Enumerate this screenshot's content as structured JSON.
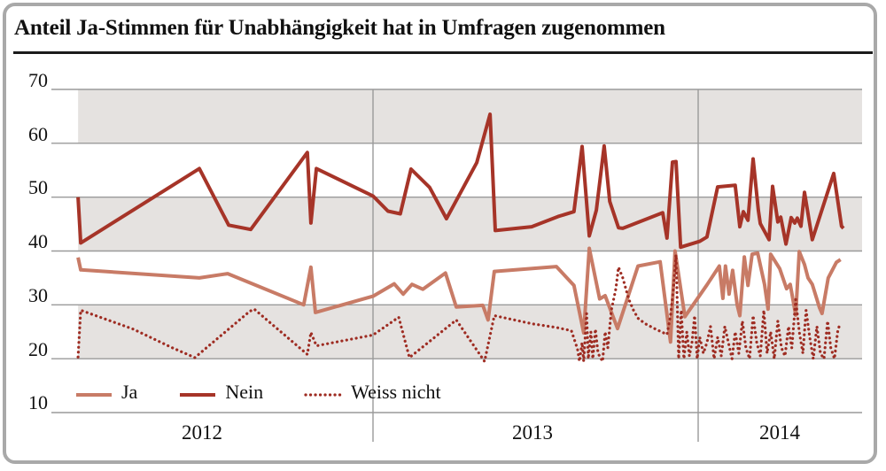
{
  "title": "Anteil Ja-Stimmen für Unabhängigkeit hat in Umfragen zugenommen",
  "chart_data": {
    "type": "line",
    "title": "Anteil Ja-Stimmen für Unabhängigkeit hat in Umfragen zugenommen",
    "xlabel": "",
    "ylabel": "",
    "ylim": [
      10,
      70
    ],
    "xlim_years": [
      2012.02,
      2014.5
    ],
    "y_ticks": [
      70,
      60,
      50,
      40,
      30,
      20,
      10
    ],
    "x_year_labels": [
      "2012",
      "2013",
      "2014"
    ],
    "year_separators": [
      2013,
      2014
    ],
    "bands": [
      [
        60,
        70
      ],
      [
        40,
        50
      ],
      [
        20,
        30
      ]
    ],
    "grid": "horizontal gridlines at every 10, vertical year separators, alternating gray bands",
    "legend_position": "bottom-left inside plot area",
    "colors": {
      "ja": "#c87b66",
      "nein": "#a63428",
      "weiss_nicht": "#9e2c22",
      "band": "#e5e2e0",
      "grid": "#9a9a9a",
      "title_rule": "#1b1b1b",
      "border": "#a9a9a9"
    },
    "series": [
      {
        "name": "Ja",
        "style": "solid",
        "color": "#c87b66",
        "points": [
          [
            2012.093,
            38.8
          ],
          [
            2012.101,
            36.5
          ],
          [
            2012.466,
            35.0
          ],
          [
            2012.553,
            35.8
          ],
          [
            2012.787,
            30.0
          ],
          [
            2012.809,
            37.0
          ],
          [
            2012.823,
            28.6
          ],
          [
            2013.0,
            31.6
          ],
          [
            2013.065,
            33.9
          ],
          [
            2013.093,
            32.0
          ],
          [
            2013.12,
            33.8
          ],
          [
            2013.153,
            32.9
          ],
          [
            2013.223,
            35.9
          ],
          [
            2013.256,
            29.6
          ],
          [
            2013.338,
            29.9
          ],
          [
            2013.354,
            27.2
          ],
          [
            2013.373,
            36.2
          ],
          [
            2013.564,
            37.1
          ],
          [
            2013.618,
            33.6
          ],
          [
            2013.648,
            24.8
          ],
          [
            2013.665,
            40.5
          ],
          [
            2013.697,
            31.1
          ],
          [
            2013.714,
            31.7
          ],
          [
            2013.752,
            25.6
          ],
          [
            2013.815,
            37.2
          ],
          [
            2013.883,
            38.0
          ],
          [
            2013.915,
            23.1
          ],
          [
            2013.929,
            40.0
          ],
          [
            2013.959,
            27.8
          ],
          [
            2014.027,
            33.7
          ],
          [
            2014.065,
            37.2
          ],
          [
            2014.076,
            31.2
          ],
          [
            2014.084,
            37.2
          ],
          [
            2014.095,
            32.0
          ],
          [
            2014.106,
            36.4
          ],
          [
            2014.12,
            30.0
          ],
          [
            2014.128,
            28.0
          ],
          [
            2014.142,
            38.9
          ],
          [
            2014.153,
            33.6
          ],
          [
            2014.166,
            39.4
          ],
          [
            2014.183,
            39.6
          ],
          [
            2014.204,
            33.8
          ],
          [
            2014.215,
            29.2
          ],
          [
            2014.223,
            39.4
          ],
          [
            2014.251,
            36.7
          ],
          [
            2014.272,
            33.0
          ],
          [
            2014.283,
            33.8
          ],
          [
            2014.3,
            28.1
          ],
          [
            2014.311,
            39.9
          ],
          [
            2014.327,
            37.5
          ],
          [
            2014.338,
            35.0
          ],
          [
            2014.351,
            33.8
          ],
          [
            2014.373,
            29.5
          ],
          [
            2014.381,
            28.4
          ],
          [
            2014.4,
            35.0
          ],
          [
            2014.425,
            37.9
          ],
          [
            2014.438,
            38.4
          ]
        ]
      },
      {
        "name": "Nein",
        "style": "solid",
        "color": "#a63428",
        "points": [
          [
            2012.093,
            50.0
          ],
          [
            2012.101,
            41.5
          ],
          [
            2012.466,
            55.3
          ],
          [
            2012.556,
            44.8
          ],
          [
            2012.624,
            44.0
          ],
          [
            2012.798,
            58.3
          ],
          [
            2012.809,
            45.2
          ],
          [
            2012.826,
            55.3
          ],
          [
            2013.0,
            50.2
          ],
          [
            2013.046,
            47.4
          ],
          [
            2013.084,
            46.9
          ],
          [
            2013.117,
            55.2
          ],
          [
            2013.174,
            51.8
          ],
          [
            2013.226,
            46.0
          ],
          [
            2013.319,
            56.4
          ],
          [
            2013.36,
            65.4
          ],
          [
            2013.376,
            43.8
          ],
          [
            2013.488,
            44.5
          ],
          [
            2013.569,
            46.4
          ],
          [
            2013.618,
            47.3
          ],
          [
            2013.643,
            59.4
          ],
          [
            2013.665,
            42.8
          ],
          [
            2013.687,
            47.6
          ],
          [
            2013.711,
            59.5
          ],
          [
            2013.728,
            49.2
          ],
          [
            2013.755,
            44.3
          ],
          [
            2013.768,
            44.2
          ],
          [
            2013.891,
            47.1
          ],
          [
            2013.904,
            42.4
          ],
          [
            2013.921,
            56.5
          ],
          [
            2013.932,
            56.6
          ],
          [
            2013.946,
            40.7
          ],
          [
            2014.005,
            41.8
          ],
          [
            2014.027,
            42.6
          ],
          [
            2014.06,
            51.9
          ],
          [
            2014.114,
            52.2
          ],
          [
            2014.128,
            44.5
          ],
          [
            2014.139,
            47.3
          ],
          [
            2014.153,
            45.7
          ],
          [
            2014.169,
            57.1
          ],
          [
            2014.185,
            47.6
          ],
          [
            2014.191,
            45.1
          ],
          [
            2014.218,
            42.1
          ],
          [
            2014.229,
            52.0
          ],
          [
            2014.245,
            45.4
          ],
          [
            2014.254,
            46.3
          ],
          [
            2014.27,
            41.3
          ],
          [
            2014.286,
            46.2
          ],
          [
            2014.297,
            45.2
          ],
          [
            2014.305,
            46.1
          ],
          [
            2014.316,
            44.6
          ],
          [
            2014.327,
            50.9
          ],
          [
            2014.351,
            42.1
          ],
          [
            2014.417,
            54.4
          ],
          [
            2014.441,
            44.6
          ],
          [
            2014.447,
            44.2
          ]
        ]
      },
      {
        "name": "Weiss nicht",
        "style": "dotted",
        "color": "#9e2c22",
        "points": [
          [
            2012.093,
            20.3
          ],
          [
            2012.101,
            29.0
          ],
          [
            2012.262,
            25.5
          ],
          [
            2012.384,
            22.0
          ],
          [
            2012.452,
            20.2
          ],
          [
            2012.621,
            28.8
          ],
          [
            2012.635,
            29.2
          ],
          [
            2012.798,
            20.8
          ],
          [
            2012.809,
            24.9
          ],
          [
            2012.826,
            22.4
          ],
          [
            2013.0,
            24.4
          ],
          [
            2013.079,
            27.7
          ],
          [
            2013.112,
            20.2
          ],
          [
            2013.256,
            27.2
          ],
          [
            2013.343,
            19.5
          ],
          [
            2013.373,
            28.0
          ],
          [
            2013.488,
            26.5
          ],
          [
            2013.564,
            25.8
          ],
          [
            2013.61,
            25.2
          ],
          [
            2013.629,
            21.8
          ],
          [
            2013.635,
            19.5
          ],
          [
            2013.643,
            23.0
          ],
          [
            2013.648,
            19.5
          ],
          [
            2013.657,
            28.4
          ],
          [
            2013.662,
            20.0
          ],
          [
            2013.67,
            25.0
          ],
          [
            2013.676,
            20.0
          ],
          [
            2013.684,
            25.5
          ],
          [
            2013.692,
            21.0
          ],
          [
            2013.706,
            19.5
          ],
          [
            2013.714,
            25.0
          ],
          [
            2013.722,
            22.0
          ],
          [
            2013.733,
            29.0
          ],
          [
            2013.747,
            33.0
          ],
          [
            2013.755,
            37.0
          ],
          [
            2013.768,
            35.0
          ],
          [
            2013.787,
            31.0
          ],
          [
            2013.801,
            29.0
          ],
          [
            2013.815,
            27.5
          ],
          [
            2013.837,
            26.5
          ],
          [
            2013.869,
            25.5
          ],
          [
            2013.904,
            24.5
          ],
          [
            2013.915,
            28.0
          ],
          [
            2013.924,
            33.0
          ],
          [
            2013.932,
            39.3
          ],
          [
            2013.94,
            20.0
          ],
          [
            2013.948,
            29.0
          ],
          [
            2013.956,
            20.0
          ],
          [
            2013.965,
            25.0
          ],
          [
            2013.973,
            20.5
          ],
          [
            2013.981,
            23.0
          ],
          [
            2013.989,
            28.0
          ],
          [
            2013.997,
            20.0
          ],
          [
            2014.005,
            24.0
          ],
          [
            2014.016,
            21.0
          ],
          [
            2014.027,
            23.0
          ],
          [
            2014.038,
            26.0
          ],
          [
            2014.049,
            20.0
          ],
          [
            2014.06,
            24.0
          ],
          [
            2014.071,
            20.5
          ],
          [
            2014.082,
            26.0
          ],
          [
            2014.093,
            23.0
          ],
          [
            2014.104,
            20.0
          ],
          [
            2014.114,
            25.0
          ],
          [
            2014.125,
            21.0
          ],
          [
            2014.136,
            27.0
          ],
          [
            2014.147,
            22.0
          ],
          [
            2014.158,
            20.0
          ],
          [
            2014.169,
            28.0
          ],
          [
            2014.18,
            23.0
          ],
          [
            2014.191,
            20.5
          ],
          [
            2014.202,
            29.0
          ],
          [
            2014.212,
            21.0
          ],
          [
            2014.223,
            25.0
          ],
          [
            2014.234,
            20.0
          ],
          [
            2014.245,
            27.0
          ],
          [
            2014.256,
            22.0
          ],
          [
            2014.267,
            20.5
          ],
          [
            2014.278,
            26.0
          ],
          [
            2014.288,
            22.0
          ],
          [
            2014.3,
            31.0
          ],
          [
            2014.311,
            25.0
          ],
          [
            2014.322,
            21.0
          ],
          [
            2014.332,
            29.0
          ],
          [
            2014.343,
            24.0
          ],
          [
            2014.354,
            20.0
          ],
          [
            2014.365,
            26.0
          ],
          [
            2014.376,
            21.0
          ],
          [
            2014.387,
            20.0
          ],
          [
            2014.398,
            27.0
          ],
          [
            2014.408,
            22.0
          ],
          [
            2014.419,
            20.0
          ],
          [
            2014.43,
            25.5
          ],
          [
            2014.438,
            26.5
          ]
        ]
      }
    ]
  }
}
